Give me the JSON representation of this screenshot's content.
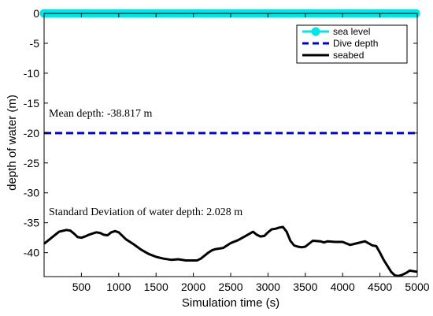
{
  "chart_data": {
    "type": "line",
    "xlabel": "Simulation time (s)",
    "ylabel": "depth of water (m)",
    "xlim": [
      0,
      5000
    ],
    "ylim": [
      -44,
      0
    ],
    "xticks": [
      500,
      1000,
      1500,
      2000,
      2500,
      3000,
      3500,
      4000,
      4500,
      5000
    ],
    "yticks": [
      0,
      -5,
      -10,
      -15,
      -20,
      -25,
      -30,
      -35,
      -40
    ],
    "grid": false,
    "legend_position": "top-right",
    "annotations": [
      {
        "text": "Mean depth: -38.817 m",
        "x": 20,
        "y": -17.1
      },
      {
        "text": "Standard Deviation of water depth: 2.028 m",
        "x": 20,
        "y": -33.5
      }
    ],
    "series": [
      {
        "name": "sea level",
        "style": "solid-circle-markers",
        "color": "#00e5e5",
        "x": [
          0,
          5000
        ],
        "y": [
          0,
          0
        ]
      },
      {
        "name": "Dive depth",
        "style": "dashed",
        "color": "#0000cc",
        "x": [
          0,
          5000
        ],
        "y": [
          -20,
          -20
        ]
      },
      {
        "name": "seabed",
        "style": "solid",
        "color": "#000000",
        "x": [
          0,
          100,
          200,
          300,
          350,
          400,
          450,
          500,
          550,
          600,
          650,
          700,
          750,
          800,
          850,
          900,
          950,
          1000,
          1100,
          1200,
          1300,
          1400,
          1500,
          1600,
          1700,
          1800,
          1900,
          2000,
          2050,
          2100,
          2150,
          2200,
          2250,
          2300,
          2400,
          2500,
          2600,
          2700,
          2800,
          2850,
          2900,
          2950,
          3000,
          3050,
          3100,
          3150,
          3200,
          3250,
          3300,
          3350,
          3400,
          3450,
          3500,
          3600,
          3700,
          3750,
          3800,
          3900,
          4000,
          4100,
          4200,
          4300,
          4400,
          4450,
          4500,
          4550,
          4600,
          4650,
          4700,
          4750,
          4800,
          4850,
          4900,
          4950,
          5000
        ],
        "y": [
          -38.5,
          -37.5,
          -36.5,
          -36.2,
          -36.3,
          -36.8,
          -37.4,
          -37.5,
          -37.3,
          -37.0,
          -36.8,
          -36.6,
          -36.7,
          -37.0,
          -37.1,
          -36.6,
          -36.4,
          -36.6,
          -37.8,
          -38.6,
          -39.5,
          -40.2,
          -40.7,
          -41.0,
          -41.2,
          -41.1,
          -41.3,
          -41.3,
          -41.3,
          -41.0,
          -40.5,
          -40.0,
          -39.6,
          -39.4,
          -39.2,
          -38.4,
          -37.9,
          -37.2,
          -36.5,
          -37.0,
          -37.3,
          -37.2,
          -36.6,
          -36.1,
          -36.0,
          -35.8,
          -35.7,
          -36.5,
          -38.0,
          -38.8,
          -39.0,
          -39.1,
          -39.0,
          -38.0,
          -38.1,
          -38.3,
          -38.1,
          -38.2,
          -38.2,
          -38.7,
          -38.4,
          -38.1,
          -38.8,
          -38.9,
          -40.0,
          -41.2,
          -42.2,
          -43.2,
          -43.8,
          -43.9,
          -43.7,
          -43.4,
          -43.0,
          -43.1,
          -43.2
        ]
      }
    ]
  }
}
